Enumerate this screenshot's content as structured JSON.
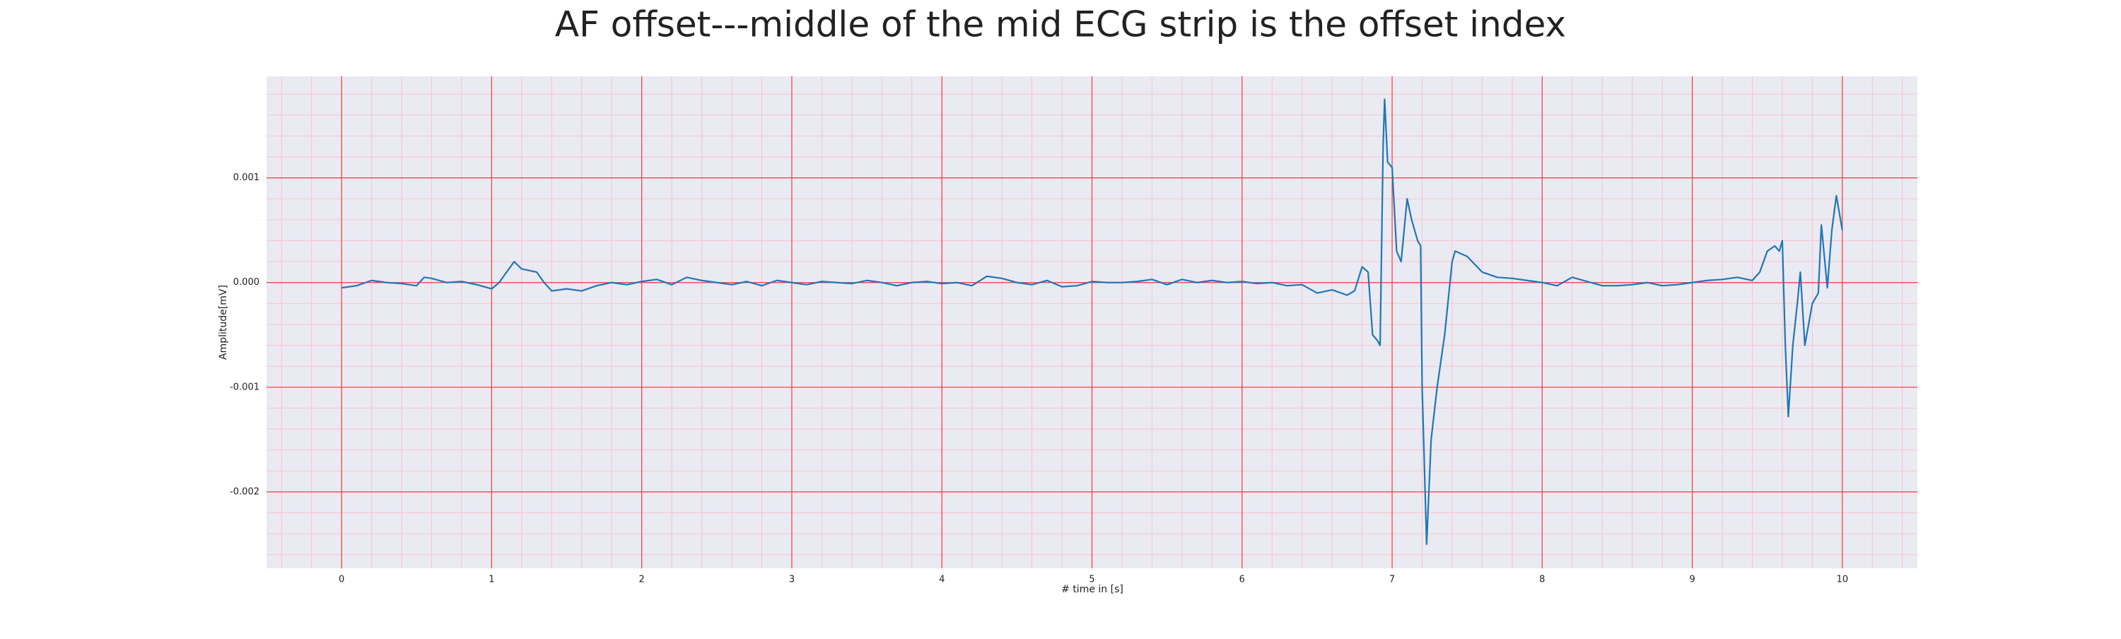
{
  "chart_data": {
    "type": "line",
    "title": "AF offset---middle of the mid ECG strip is the offset index",
    "xlabel": "# time in [s]",
    "ylabel": "Amplitude[mV]",
    "x": [
      0,
      0.1,
      0.2,
      0.3,
      0.4,
      0.5,
      0.55,
      0.6,
      0.7,
      0.8,
      0.9,
      1.0,
      1.05,
      1.1,
      1.15,
      1.2,
      1.3,
      1.35,
      1.4,
      1.5,
      1.6,
      1.7,
      1.8,
      1.9,
      2.0,
      2.1,
      2.2,
      2.3,
      2.4,
      2.5,
      2.6,
      2.7,
      2.8,
      2.9,
      3.0,
      3.1,
      3.2,
      3.3,
      3.4,
      3.5,
      3.6,
      3.7,
      3.8,
      3.9,
      4.0,
      4.1,
      4.2,
      4.3,
      4.4,
      4.5,
      4.6,
      4.7,
      4.8,
      4.9,
      5.0,
      5.1,
      5.2,
      5.3,
      5.4,
      5.5,
      5.6,
      5.7,
      5.8,
      5.9,
      6.0,
      6.1,
      6.2,
      6.3,
      6.4,
      6.5,
      6.6,
      6.7,
      6.75,
      6.8,
      6.84,
      6.87,
      6.9,
      6.92,
      6.94,
      6.95,
      6.97,
      7.0,
      7.03,
      7.06,
      7.1,
      7.13,
      7.17,
      7.19,
      7.2,
      7.23,
      7.26,
      7.3,
      7.35,
      7.4,
      7.42,
      7.5,
      7.6,
      7.7,
      7.8,
      7.9,
      8.0,
      8.1,
      8.2,
      8.3,
      8.4,
      8.5,
      8.6,
      8.7,
      8.8,
      8.9,
      9.0,
      9.1,
      9.2,
      9.3,
      9.4,
      9.45,
      9.5,
      9.55,
      9.58,
      9.6,
      9.62,
      9.64,
      9.67,
      9.7,
      9.72,
      9.75,
      9.8,
      9.84,
      9.86,
      9.9,
      9.93,
      9.96,
      10.0
    ],
    "series": [
      {
        "color": "#1f77b4",
        "values": [
          -5e-05,
          -3e-05,
          2e-05,
          0.0,
          -1e-05,
          -3e-05,
          5e-05,
          4e-05,
          0.0,
          1e-05,
          -2e-05,
          -6e-05,
          0.0,
          0.0001,
          0.0002,
          0.00013,
          0.0001,
          0.0,
          -8e-05,
          -6e-05,
          -8e-05,
          -3e-05,
          0.0,
          -2e-05,
          1e-05,
          3e-05,
          -2e-05,
          5e-05,
          2e-05,
          0.0,
          -2e-05,
          1e-05,
          -3e-05,
          2e-05,
          0.0,
          -2e-05,
          1e-05,
          0.0,
          -1e-05,
          2e-05,
          0.0,
          -3e-05,
          0.0,
          1e-05,
          -1e-05,
          0.0,
          -3e-05,
          6e-05,
          4e-05,
          0.0,
          -2e-05,
          2e-05,
          -4e-05,
          -3e-05,
          1e-05,
          0.0,
          0.0,
          1e-05,
          3e-05,
          -2e-05,
          3e-05,
          0.0,
          2e-05,
          0.0,
          1e-05,
          -1e-05,
          0.0,
          -3e-05,
          -2e-05,
          -0.0001,
          -7e-05,
          -0.00012,
          -8e-05,
          0.00015,
          0.0001,
          -0.0005,
          -0.00055,
          -0.0006,
          0.0013,
          0.00175,
          0.00115,
          0.0011,
          0.0003,
          0.0002,
          0.0008,
          0.0006,
          0.0004,
          0.00035,
          -0.001,
          -0.0025,
          -0.0015,
          -0.001,
          -0.0005,
          0.0002,
          0.0003,
          0.00025,
          0.0001,
          5e-05,
          4e-05,
          2e-05,
          0.0,
          -3e-05,
          5e-05,
          1e-05,
          -3e-05,
          -3e-05,
          -2e-05,
          0.0,
          -3e-05,
          -2e-05,
          0.0,
          2e-05,
          3e-05,
          5e-05,
          2e-05,
          0.0001,
          0.0003,
          0.00035,
          0.0003,
          0.0004,
          -0.0006,
          -0.00128,
          -0.0006,
          -0.0002,
          0.0001,
          -0.0006,
          -0.0002,
          -0.0001,
          0.00055,
          -5e-05,
          0.0005,
          0.00083,
          0.0005
        ]
      }
    ],
    "xlim": [
      -0.5,
      10.5
    ],
    "xticks": [
      0,
      1,
      2,
      3,
      4,
      5,
      6,
      7,
      8,
      9,
      10
    ],
    "ylim": [
      -0.00273,
      0.00197
    ],
    "yticks": [
      {
        "value": -0.002,
        "label": "-0.002"
      },
      {
        "value": -0.001,
        "label": "-0.001"
      },
      {
        "value": 0,
        "label": "0.000"
      },
      0.001
    ],
    "grid": true,
    "minor_divisions": 5,
    "background": "#eaeaf2",
    "grid_color": "#f03c3c",
    "minor_grid_color": "#f7c4cc"
  }
}
